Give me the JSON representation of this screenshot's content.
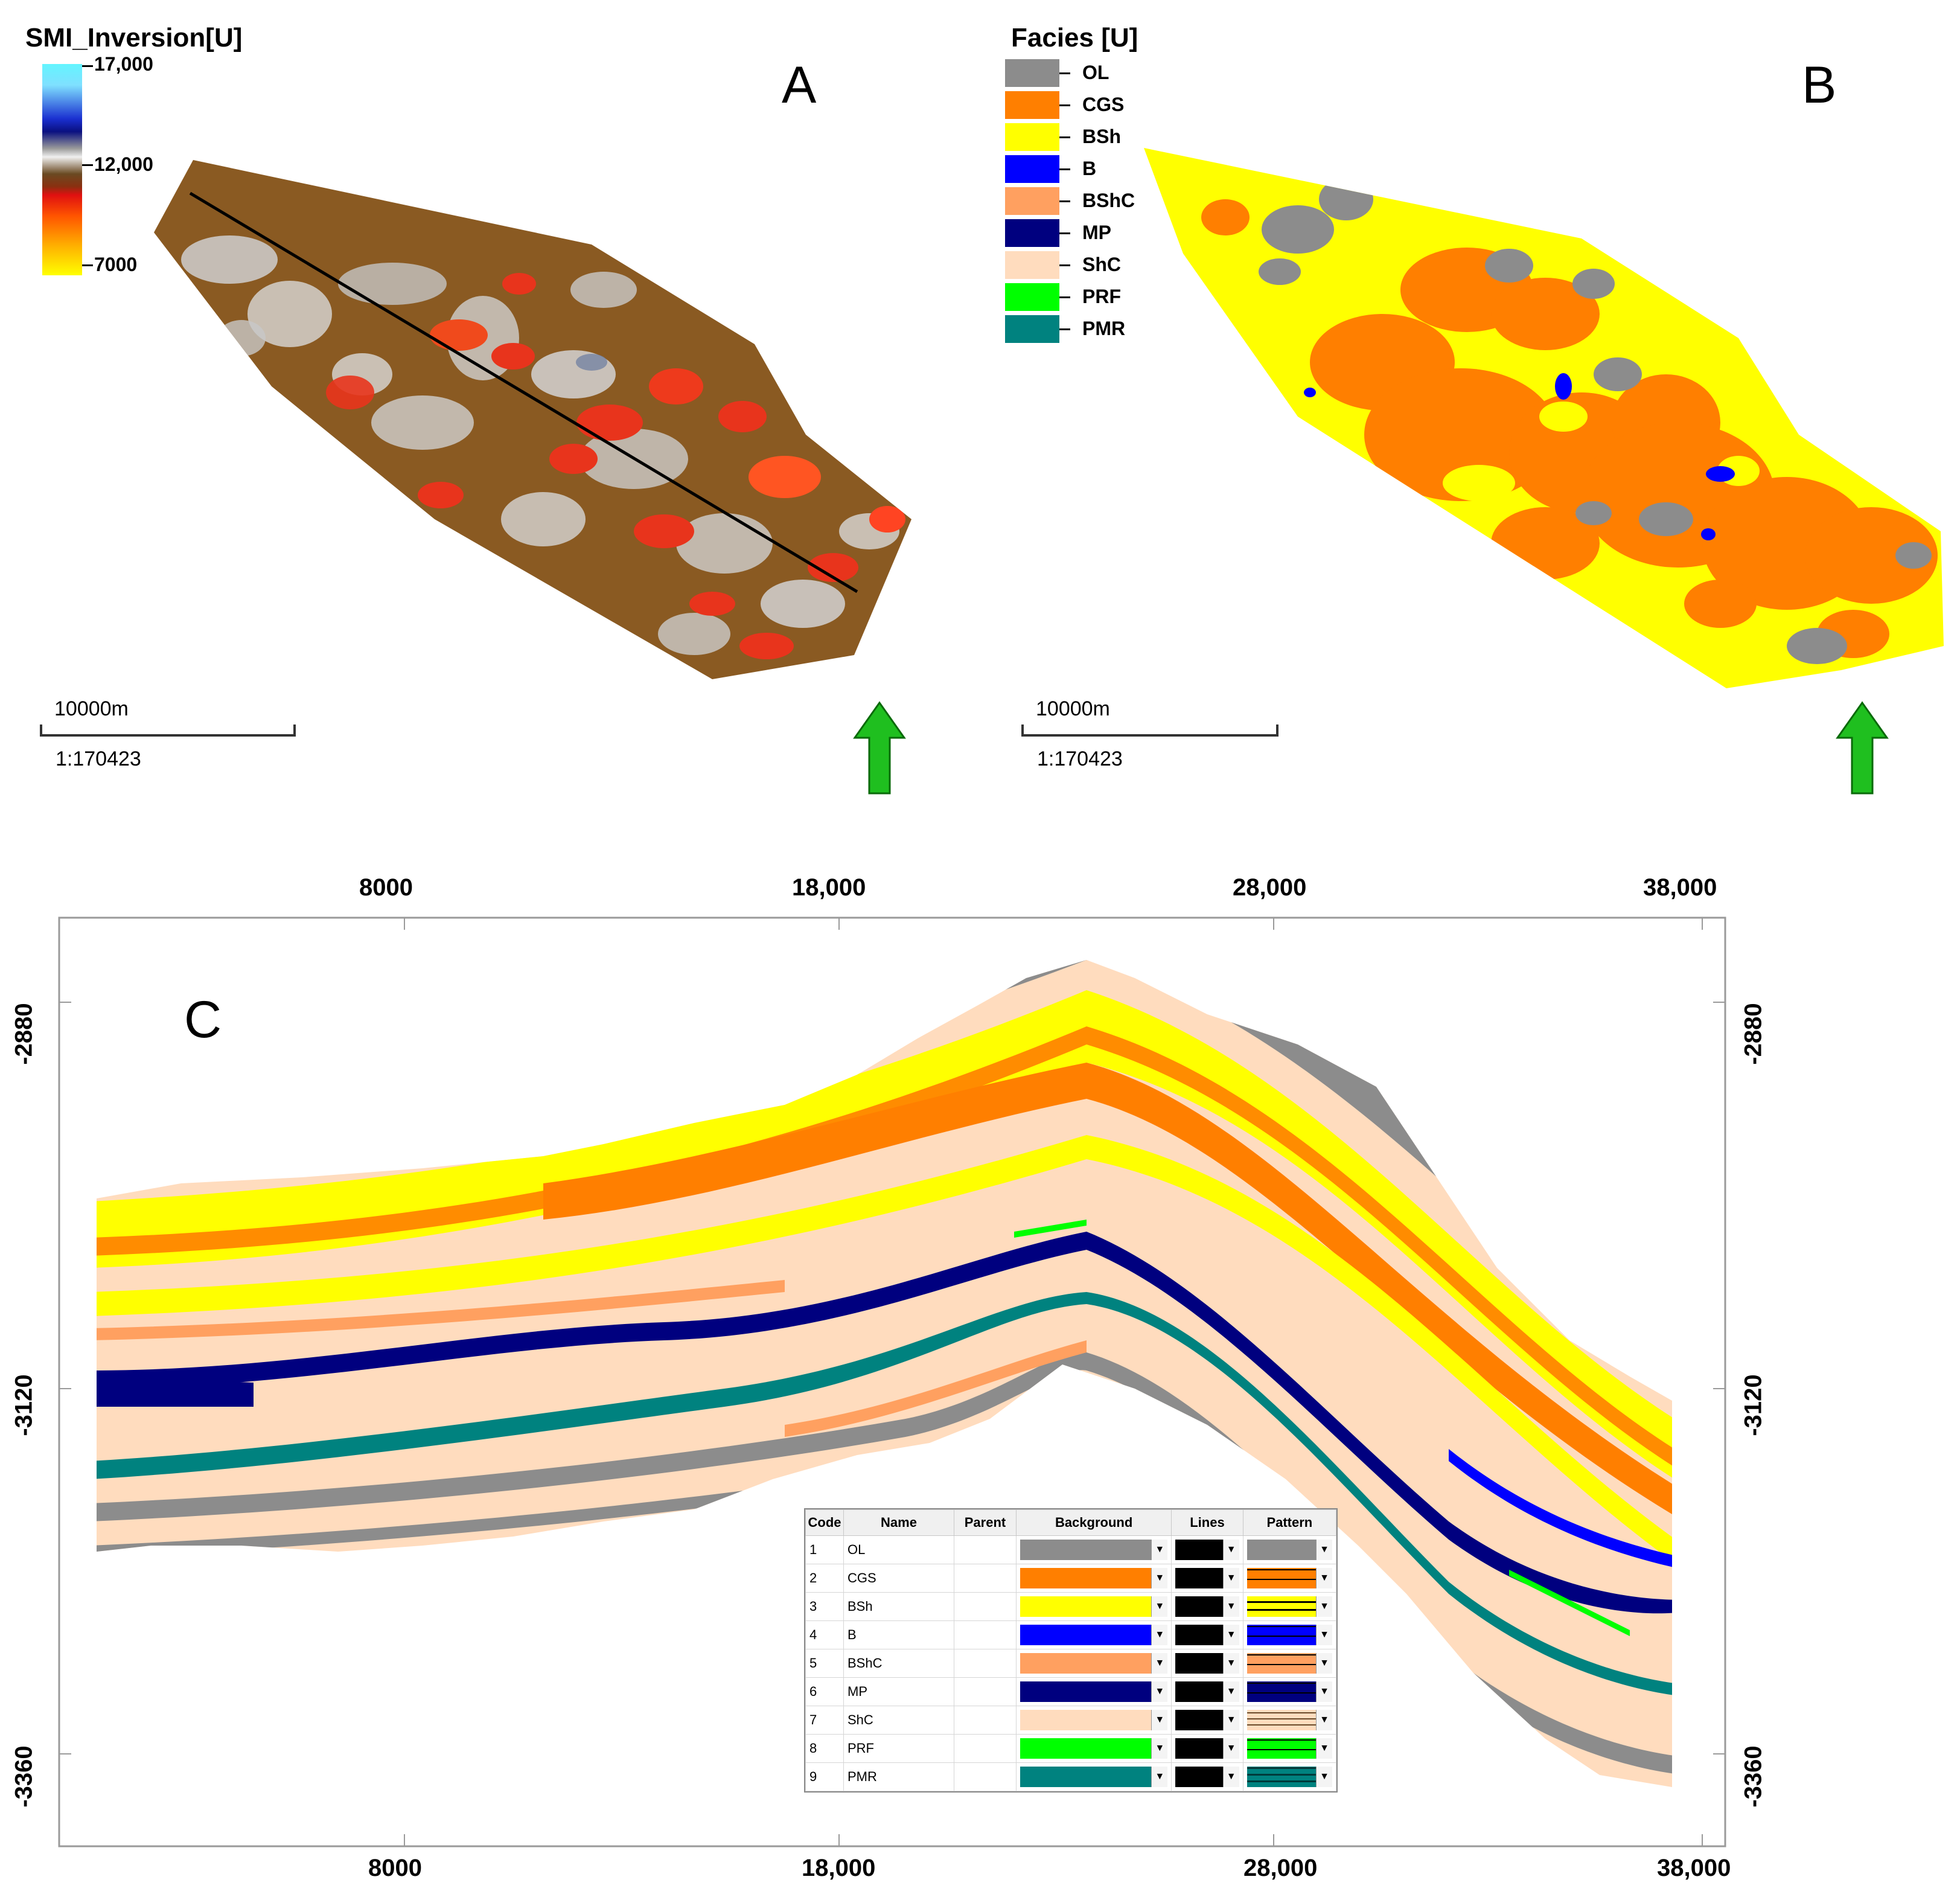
{
  "panel_a": {
    "title": "SMI_Inversion[U]",
    "letter": "A",
    "colorbar_ticks": [
      "17,000",
      "12,000",
      "7000"
    ],
    "scale_label": "10000m",
    "scale_ratio": "1:170423",
    "colors": {
      "shape_fill": "#8a5a22",
      "mottle_light": "#c9c9c9",
      "mottle_red": "#e8341c",
      "profile_line": "#000000",
      "arrow": "#1fbf1f"
    }
  },
  "panel_b": {
    "title": "Facies [U]",
    "letter": "B",
    "legend": [
      {
        "label": "OL",
        "color": "#8c8c8c"
      },
      {
        "label": "CGS",
        "color": "#ff7f00"
      },
      {
        "label": "BSh",
        "color": "#ffff00"
      },
      {
        "label": "B",
        "color": "#0000ff"
      },
      {
        "label": "BShC",
        "color": "#ffa060"
      },
      {
        "label": "MP",
        "color": "#00007f"
      },
      {
        "label": "ShC",
        "color": "#ffdcbe"
      },
      {
        "label": "PRF",
        "color": "#00ff00"
      },
      {
        "label": "PMR",
        "color": "#00827f"
      }
    ],
    "scale_label": "10000m",
    "scale_ratio": "1:170423"
  },
  "panel_c": {
    "letter": "C",
    "top_axis": [
      "8000",
      "18,000",
      "28,000",
      "38,000"
    ],
    "bottom_axis": [
      "8000",
      "18,000",
      "28,000",
      "38,000"
    ],
    "left_axis": [
      "-2880",
      "-3120",
      "-3360"
    ],
    "right_axis": [
      "-2880",
      "-3120",
      "-3360"
    ],
    "table": {
      "headers": [
        "Code",
        "Name",
        "Parent",
        "Background",
        "Lines",
        "Pattern"
      ],
      "rows": [
        {
          "code": "1",
          "name": "OL",
          "bg": "#8c8c8c",
          "pat": "#8c8c8c"
        },
        {
          "code": "2",
          "name": "CGS",
          "bg": "#ff7f00",
          "pat": "#ff7f00"
        },
        {
          "code": "3",
          "name": "BSh",
          "bg": "#ffff00",
          "pat": "#ffff00"
        },
        {
          "code": "4",
          "name": "B",
          "bg": "#0000ff",
          "pat": "#0000ff"
        },
        {
          "code": "5",
          "name": "BShC",
          "bg": "#ffa060",
          "pat": "#ffa060"
        },
        {
          "code": "6",
          "name": "MP",
          "bg": "#00007f",
          "pat": "#00007f"
        },
        {
          "code": "7",
          "name": "ShC",
          "bg": "#ffdcbe",
          "pat": "#ffdcbe"
        },
        {
          "code": "8",
          "name": "PRF",
          "bg": "#00ff00",
          "pat": "#00ff00"
        },
        {
          "code": "9",
          "name": "PMR",
          "bg": "#00827f",
          "pat": "#00827f"
        }
      ]
    }
  }
}
